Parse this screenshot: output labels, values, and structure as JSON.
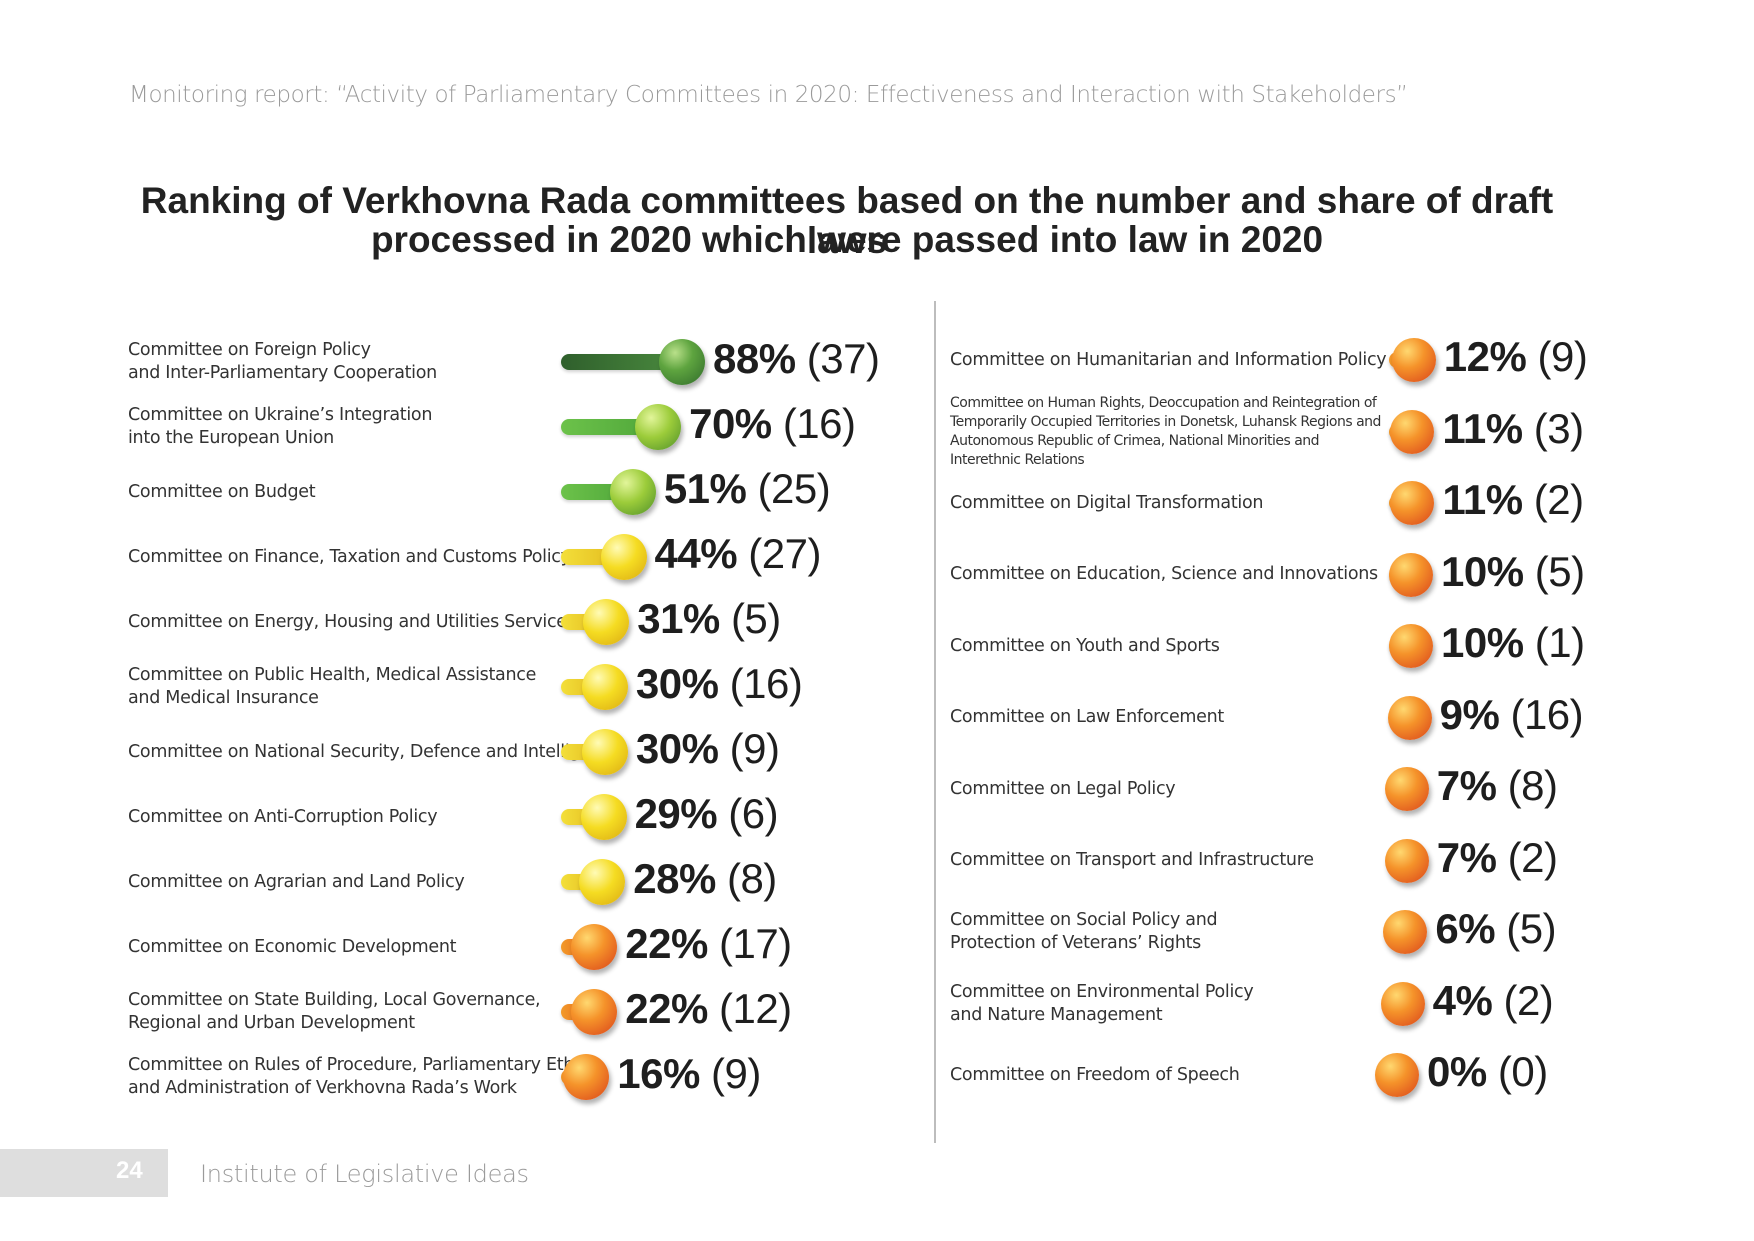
{
  "header": {
    "report_line": "Monitoring report: “Activity of Parliamentary Committees in 2020: Effectiveness and Interaction with Stakeholders”"
  },
  "colors": {
    "dark_green": "#3f7a3a",
    "green": "#5fb342",
    "yellow_green": "#8fc43a",
    "yellow": "#f2d21b",
    "orange": "#f0821e",
    "orange_red": "#e8521b",
    "divider": "#bdbdbd"
  },
  "chart_data": {
    "type": "bar",
    "title_line1": "Ranking of Verkhovna Rada committees based on the number and share of draft laws",
    "title_line2": "processed in 2020 which were passed into law in 2020",
    "left": [
      {
        "label_lines": [
          "Committee on Foreign Policy",
          "and Inter-Parliamentary Cooperation"
        ],
        "share": 88,
        "count": 37,
        "share_text": "88%",
        "count_text": "(37)",
        "color": "dark_green"
      },
      {
        "label_lines": [
          "Committee on Ukraine’s Integration",
          "into the European Union"
        ],
        "share": 70,
        "count": 16,
        "share_text": "70%",
        "count_text": "(16)",
        "color": "green"
      },
      {
        "label_lines": [
          "Committee on Budget"
        ],
        "share": 51,
        "count": 25,
        "share_text": "51%",
        "count_text": "(25)",
        "color": "green"
      },
      {
        "label_lines": [
          "Committee on Finance, Taxation and Customs Policy"
        ],
        "share": 44,
        "count": 27,
        "share_text": "44%",
        "count_text": "(27)",
        "color": "yellow"
      },
      {
        "label_lines": [
          "Committee on Energy, Housing and Utilities Services"
        ],
        "share": 31,
        "count": 5,
        "share_text": "31%",
        "count_text": "(5)",
        "color": "yellow"
      },
      {
        "label_lines": [
          "Committee on Public Health, Medical Assistance",
          "and Medical Insurance"
        ],
        "share": 30,
        "count": 16,
        "share_text": "30%",
        "count_text": "(16)",
        "color": "yellow"
      },
      {
        "label_lines": [
          "Committee on National Security, Defence and Intelligence"
        ],
        "share": 30,
        "count": 9,
        "share_text": "30%",
        "count_text": "(9)",
        "color": "yellow"
      },
      {
        "label_lines": [
          "Committee on Anti-Corruption Policy"
        ],
        "share": 29,
        "count": 6,
        "share_text": "29%",
        "count_text": "(6)",
        "color": "yellow"
      },
      {
        "label_lines": [
          "Committee on Agrarian and Land Policy"
        ],
        "share": 28,
        "count": 8,
        "share_text": "28%",
        "count_text": "(8)",
        "color": "yellow"
      },
      {
        "label_lines": [
          "Committee on Economic Development"
        ],
        "share": 22,
        "count": 17,
        "share_text": "22%",
        "count_text": "(17)",
        "color": "orange"
      },
      {
        "label_lines": [
          "Committee on State Building, Local Governance,",
          "Regional and Urban Development"
        ],
        "share": 22,
        "count": 12,
        "share_text": "22%",
        "count_text": "(12)",
        "color": "orange"
      },
      {
        "label_lines": [
          "Committee on Rules of Procedure, Parliamentary Ethics",
          "and Administration of Verkhovna Rada’s Work"
        ],
        "share": 16,
        "count": 9,
        "share_text": "16%",
        "count_text": "(9)",
        "color": "orange"
      }
    ],
    "right": [
      {
        "label_lines": [
          "Committee on Humanitarian and Information Policy"
        ],
        "share": 12,
        "count": 9,
        "share_text": "12%",
        "count_text": "(9)",
        "color": "orange"
      },
      {
        "label_lines": [
          "Committee on Human Rights, Deoccupation and Reintegration of",
          "Temporarily Occupied Territories in Donetsk, Luhansk Regions and",
          "Autonomous Republic of Crimea, National Minorities and",
          "Interethnic Relations"
        ],
        "small": true,
        "share": 11,
        "count": 3,
        "share_text": "11%",
        "count_text": "(3)",
        "color": "orange"
      },
      {
        "label_lines": [
          "Committee on Digital Transformation"
        ],
        "share": 11,
        "count": 2,
        "share_text": "11%",
        "count_text": "(2)",
        "color": "orange"
      },
      {
        "label_lines": [
          "Committee on Education, Science and Innovations"
        ],
        "share": 10,
        "count": 5,
        "share_text": "10%",
        "count_text": "(5)",
        "color": "orange"
      },
      {
        "label_lines": [
          "Committee on Youth and Sports"
        ],
        "share": 10,
        "count": 1,
        "share_text": "10%",
        "count_text": "(1)",
        "color": "orange"
      },
      {
        "label_lines": [
          "Committee on Law Enforcement"
        ],
        "share": 9,
        "count": 16,
        "share_text": "9%",
        "count_text": "(16)",
        "color": "orange"
      },
      {
        "label_lines": [
          "Committee on Legal Policy"
        ],
        "share": 7,
        "count": 8,
        "share_text": "7%",
        "count_text": "(8)",
        "color": "orange"
      },
      {
        "label_lines": [
          "Committee on Transport and Infrastructure"
        ],
        "share": 7,
        "count": 2,
        "share_text": "7%",
        "count_text": "(2)",
        "color": "orange"
      },
      {
        "label_lines": [
          "Committee on Social Policy and",
          "Protection of Veterans’ Rights"
        ],
        "share": 6,
        "count": 5,
        "share_text": "6%",
        "count_text": "(5)",
        "color": "orange"
      },
      {
        "label_lines": [
          "Committee on Environmental Policy",
          "and Nature Management"
        ],
        "share": 4,
        "count": 2,
        "share_text": "4%",
        "count_text": "(2)",
        "color": "orange"
      },
      {
        "label_lines": [
          "Committee on Freedom of Speech"
        ],
        "share": 0,
        "count": 0,
        "share_text": "0%",
        "count_text": "(0)",
        "color": "orange"
      }
    ]
  },
  "footer": {
    "page_number": "24",
    "publisher": "Institute of Legislative Ideas"
  }
}
